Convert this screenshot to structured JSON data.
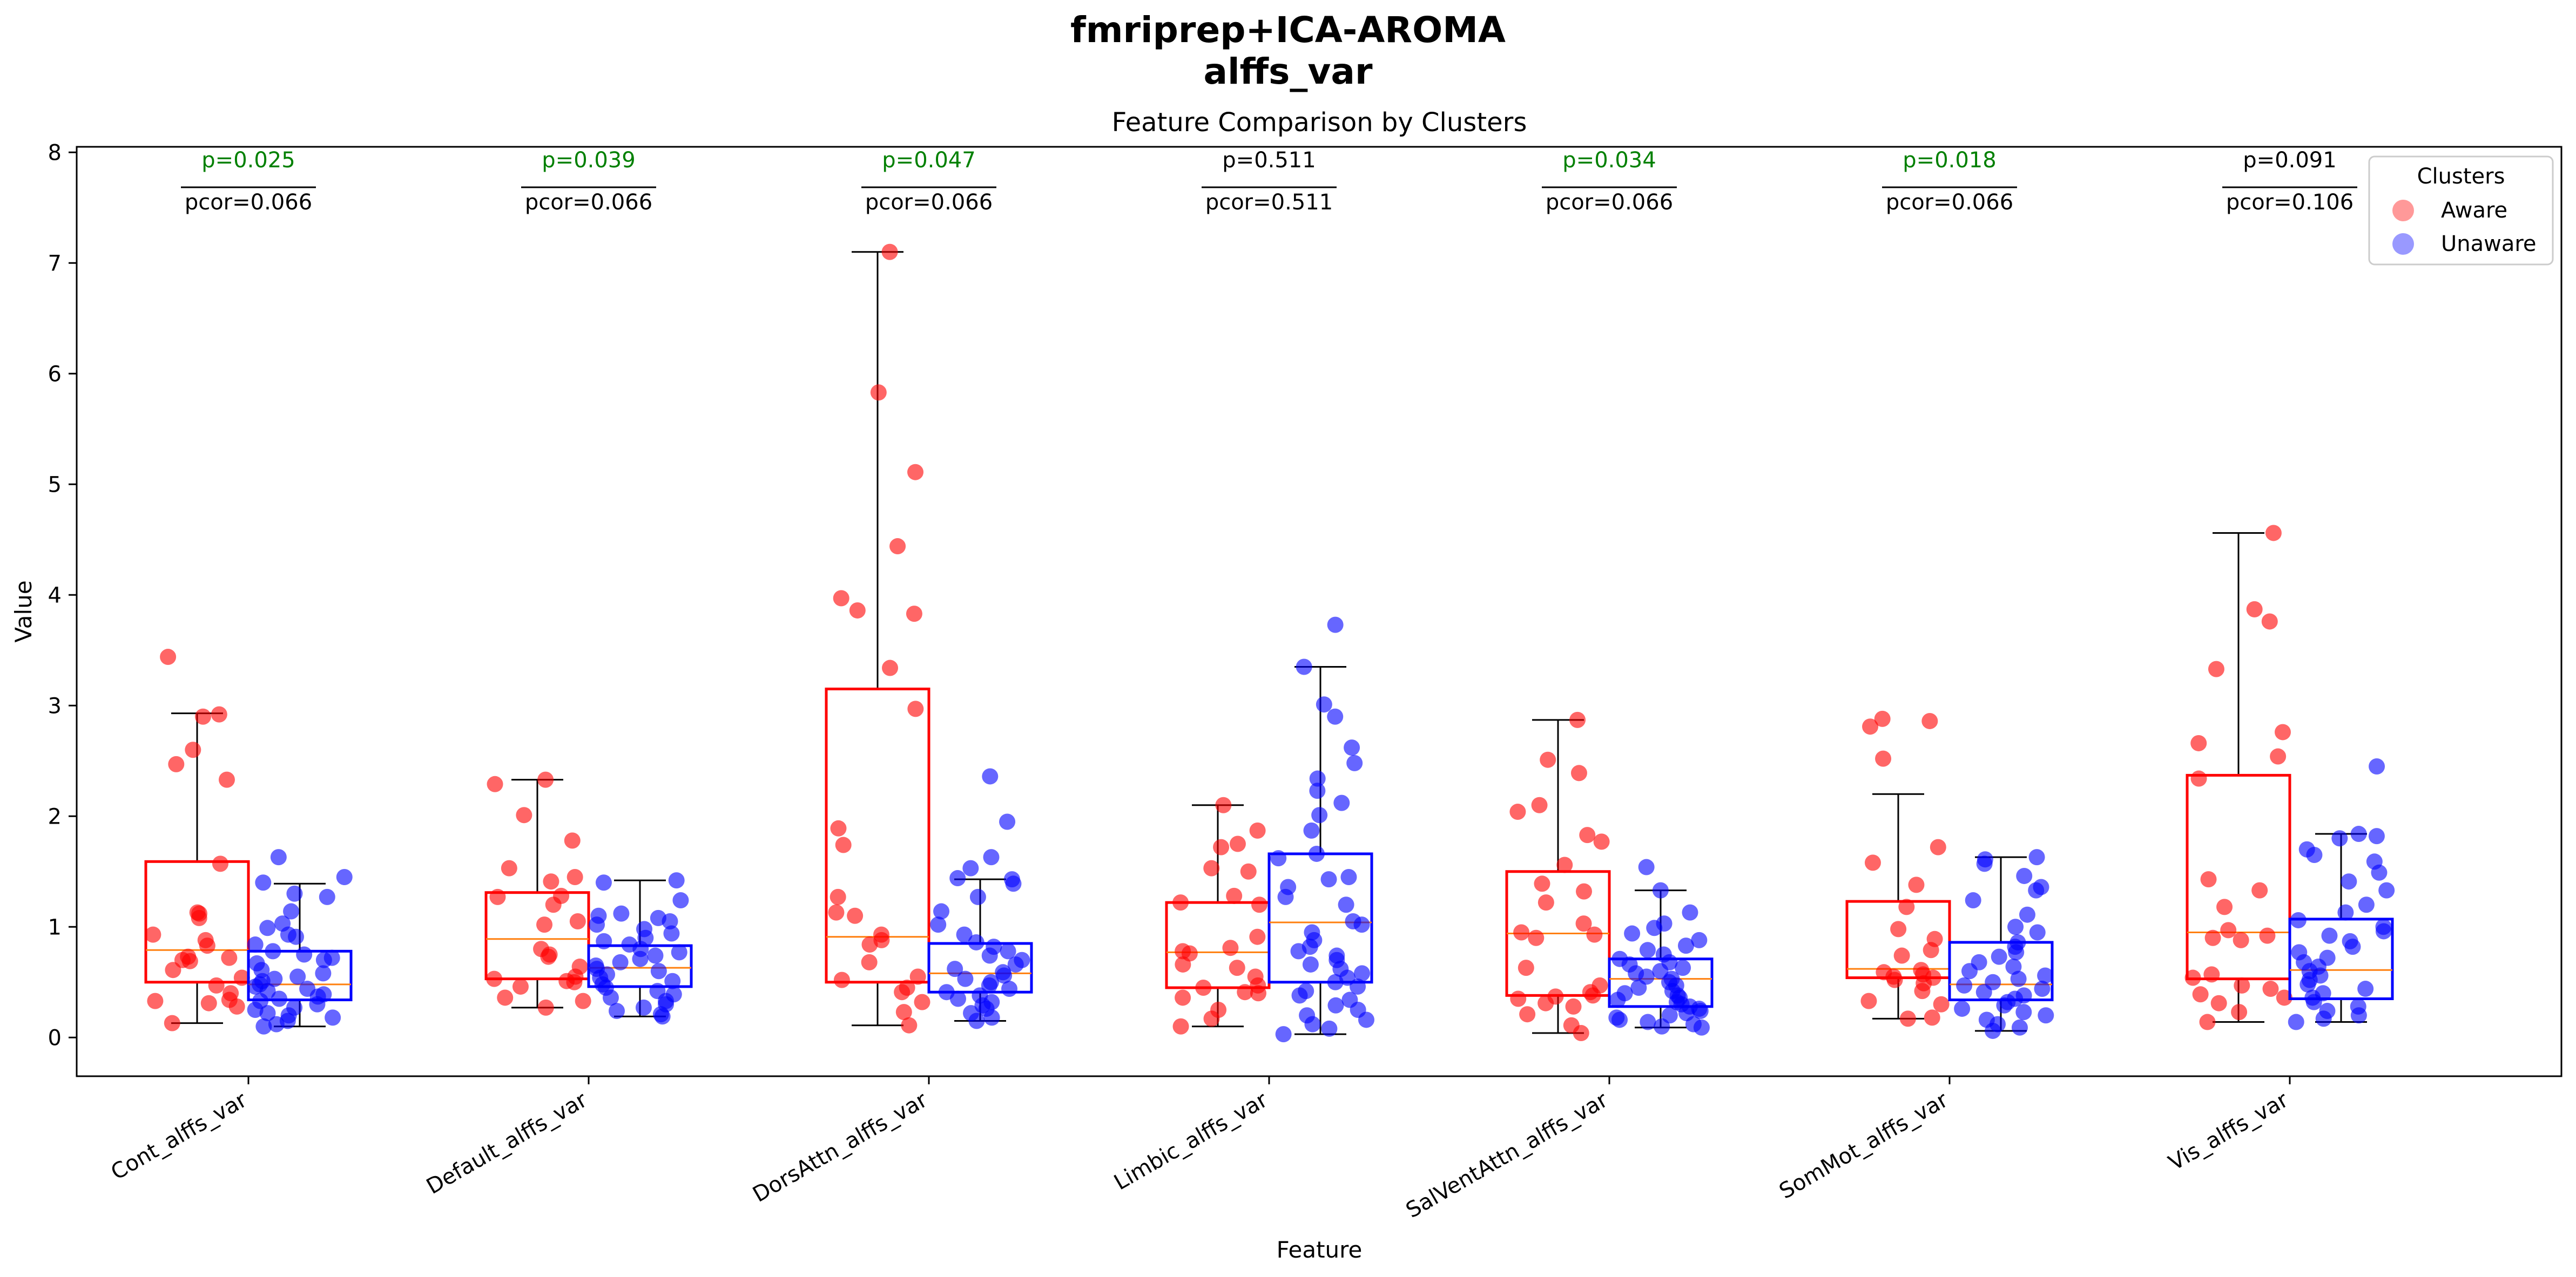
{
  "chart_data": {
    "type": "box",
    "suptitle": [
      "fmriprep+ICA-AROMA",
      "alffs_var"
    ],
    "title": "Feature Comparison by Clusters",
    "xlabel": "Feature",
    "ylabel": "Value",
    "ylim": [
      -0.35,
      8.05
    ],
    "yticks": [
      0,
      1,
      2,
      3,
      4,
      5,
      6,
      7,
      8
    ],
    "categories": [
      "Cont_alffs_var",
      "Default_alffs_var",
      "DorsAttn_alffs_var",
      "Limbic_alffs_var",
      "SalVentAttn_alffs_var",
      "SomMot_alffs_var",
      "Vis_alffs_var"
    ],
    "legend": {
      "title": "Clusters",
      "placement": "top-right"
    },
    "colors": {
      "aware": "#ff0000",
      "unaware": "#0000ff",
      "median": "#ff7f0e",
      "significant": "#008000",
      "nonsignificant": "#000000"
    },
    "series": [
      {
        "name": "Aware",
        "boxes": [
          {
            "whislo": 0.13,
            "q1": 0.5,
            "med": 0.79,
            "q3": 1.59,
            "whishi": 2.93,
            "points": [
              3.44,
              2.92,
              2.9,
              2.6,
              2.47,
              2.33,
              1.57,
              1.13,
              1.12,
              1.08,
              0.93,
              0.88,
              0.83,
              0.73,
              0.72,
              0.7,
              0.69,
              0.61,
              0.54,
              0.47,
              0.4,
              0.34,
              0.33,
              0.31,
              0.28,
              0.13
            ]
          },
          {
            "whislo": 0.27,
            "q1": 0.53,
            "med": 0.89,
            "q3": 1.31,
            "whishi": 2.33,
            "points": [
              2.33,
              2.29,
              2.01,
              1.78,
              1.53,
              1.45,
              1.41,
              1.28,
              1.27,
              1.2,
              1.05,
              1.02,
              0.8,
              0.75,
              0.73,
              0.64,
              0.55,
              0.53,
              0.51,
              0.5,
              0.46,
              0.36,
              0.33,
              0.27
            ]
          },
          {
            "whislo": 0.11,
            "q1": 0.5,
            "med": 0.91,
            "q3": 3.15,
            "whishi": 7.1,
            "points": [
              7.1,
              5.83,
              5.11,
              4.44,
              3.97,
              3.86,
              3.83,
              3.34,
              2.97,
              1.89,
              1.74,
              1.27,
              1.13,
              1.1,
              0.93,
              0.88,
              0.84,
              0.68,
              0.55,
              0.52,
              0.45,
              0.41,
              0.32,
              0.23,
              0.11
            ]
          },
          {
            "whislo": 0.1,
            "q1": 0.45,
            "med": 0.77,
            "q3": 1.22,
            "whishi": 2.1,
            "points": [
              2.1,
              1.87,
              1.75,
              1.72,
              1.53,
              1.5,
              1.28,
              1.22,
              1.2,
              0.91,
              0.81,
              0.78,
              0.76,
              0.66,
              0.63,
              0.55,
              0.47,
              0.45,
              0.41,
              0.4,
              0.36,
              0.25,
              0.17,
              0.1
            ]
          },
          {
            "whislo": 0.04,
            "q1": 0.38,
            "med": 0.94,
            "q3": 1.5,
            "whishi": 2.87,
            "points": [
              2.87,
              2.51,
              2.39,
              2.1,
              2.04,
              1.83,
              1.77,
              1.56,
              1.39,
              1.32,
              1.22,
              1.03,
              0.95,
              0.93,
              0.9,
              0.63,
              0.47,
              0.41,
              0.38,
              0.37,
              0.35,
              0.31,
              0.28,
              0.21,
              0.11,
              0.04
            ]
          },
          {
            "whislo": 0.17,
            "q1": 0.54,
            "med": 0.62,
            "q3": 1.23,
            "whishi": 2.2,
            "points": [
              2.88,
              2.86,
              2.81,
              2.52,
              1.72,
              1.58,
              1.38,
              1.18,
              0.98,
              0.89,
              0.79,
              0.74,
              0.61,
              0.59,
              0.57,
              0.55,
              0.54,
              0.52,
              0.49,
              0.42,
              0.33,
              0.3,
              0.18,
              0.17
            ]
          },
          {
            "whislo": 0.14,
            "q1": 0.53,
            "med": 0.95,
            "q3": 2.37,
            "whishi": 4.56,
            "points": [
              4.56,
              3.87,
              3.76,
              3.33,
              2.76,
              2.66,
              2.54,
              2.34,
              1.43,
              1.33,
              1.18,
              0.97,
              0.92,
              0.9,
              0.88,
              0.57,
              0.54,
              0.47,
              0.44,
              0.39,
              0.36,
              0.31,
              0.23,
              0.14
            ]
          }
        ]
      },
      {
        "name": "Unaware",
        "boxes": [
          {
            "whislo": 0.1,
            "q1": 0.34,
            "med": 0.48,
            "q3": 0.78,
            "whishi": 1.39,
            "points": [
              1.63,
              1.45,
              1.4,
              1.3,
              1.27,
              1.14,
              1.03,
              0.99,
              0.93,
              0.91,
              0.84,
              0.78,
              0.75,
              0.72,
              0.7,
              0.67,
              0.61,
              0.58,
              0.55,
              0.53,
              0.51,
              0.48,
              0.46,
              0.44,
              0.42,
              0.39,
              0.37,
              0.35,
              0.33,
              0.3,
              0.27,
              0.25,
              0.22,
              0.2,
              0.18,
              0.15,
              0.12,
              0.1
            ]
          },
          {
            "whislo": 0.19,
            "q1": 0.46,
            "med": 0.63,
            "q3": 0.83,
            "whishi": 1.42,
            "points": [
              1.42,
              1.4,
              1.24,
              1.12,
              1.1,
              1.08,
              1.05,
              1.02,
              0.98,
              0.94,
              0.9,
              0.87,
              0.84,
              0.8,
              0.77,
              0.74,
              0.71,
              0.68,
              0.65,
              0.62,
              0.6,
              0.57,
              0.54,
              0.51,
              0.48,
              0.45,
              0.42,
              0.39,
              0.36,
              0.33,
              0.3,
              0.27,
              0.24,
              0.21,
              0.19
            ]
          },
          {
            "whislo": 0.15,
            "q1": 0.41,
            "med": 0.58,
            "q3": 0.85,
            "whishi": 1.43,
            "points": [
              2.36,
              1.95,
              1.63,
              1.53,
              1.44,
              1.43,
              1.39,
              1.27,
              1.14,
              1.02,
              0.93,
              0.86,
              0.82,
              0.78,
              0.74,
              0.7,
              0.66,
              0.62,
              0.59,
              0.56,
              0.53,
              0.5,
              0.47,
              0.44,
              0.41,
              0.38,
              0.35,
              0.32,
              0.29,
              0.26,
              0.22,
              0.18,
              0.15
            ]
          },
          {
            "whislo": 0.03,
            "q1": 0.5,
            "med": 1.04,
            "q3": 1.66,
            "whishi": 3.35,
            "points": [
              3.73,
              3.35,
              3.01,
              2.9,
              2.62,
              2.48,
              2.34,
              2.23,
              2.12,
              2.01,
              1.87,
              1.66,
              1.62,
              1.45,
              1.43,
              1.36,
              1.27,
              1.2,
              1.05,
              1.02,
              0.95,
              0.88,
              0.82,
              0.78,
              0.74,
              0.7,
              0.66,
              0.62,
              0.58,
              0.54,
              0.5,
              0.46,
              0.42,
              0.38,
              0.34,
              0.29,
              0.25,
              0.2,
              0.16,
              0.12,
              0.08,
              0.03
            ]
          },
          {
            "whislo": 0.09,
            "q1": 0.28,
            "med": 0.53,
            "q3": 0.71,
            "whishi": 1.33,
            "points": [
              1.54,
              1.33,
              1.13,
              1.03,
              0.99,
              0.94,
              0.88,
              0.83,
              0.79,
              0.75,
              0.71,
              0.68,
              0.66,
              0.63,
              0.6,
              0.58,
              0.55,
              0.53,
              0.5,
              0.47,
              0.45,
              0.42,
              0.4,
              0.38,
              0.36,
              0.34,
              0.32,
              0.3,
              0.28,
              0.26,
              0.24,
              0.22,
              0.2,
              0.18,
              0.16,
              0.14,
              0.12,
              0.1,
              0.09
            ]
          },
          {
            "whislo": 0.06,
            "q1": 0.34,
            "med": 0.48,
            "q3": 0.86,
            "whishi": 1.63,
            "points": [
              1.63,
              1.61,
              1.57,
              1.46,
              1.36,
              1.33,
              1.24,
              1.11,
              1.0,
              0.95,
              0.86,
              0.82,
              0.77,
              0.73,
              0.68,
              0.64,
              0.6,
              0.56,
              0.53,
              0.5,
              0.47,
              0.44,
              0.41,
              0.38,
              0.35,
              0.32,
              0.29,
              0.26,
              0.23,
              0.2,
              0.16,
              0.12,
              0.09,
              0.06
            ]
          },
          {
            "whislo": 0.14,
            "q1": 0.35,
            "med": 0.61,
            "q3": 1.07,
            "whishi": 1.84,
            "points": [
              2.45,
              1.84,
              1.82,
              1.8,
              1.7,
              1.65,
              1.59,
              1.49,
              1.41,
              1.33,
              1.2,
              1.13,
              1.06,
              1.0,
              0.96,
              0.92,
              0.87,
              0.82,
              0.77,
              0.72,
              0.68,
              0.64,
              0.6,
              0.56,
              0.52,
              0.48,
              0.44,
              0.4,
              0.36,
              0.32,
              0.28,
              0.24,
              0.2,
              0.17,
              0.14
            ]
          }
        ]
      }
    ],
    "annotations": [
      {
        "p": "p=0.025",
        "pcor": "pcor=0.066",
        "significant": true
      },
      {
        "p": "p=0.039",
        "pcor": "pcor=0.066",
        "significant": true
      },
      {
        "p": "p=0.047",
        "pcor": "pcor=0.066",
        "significant": true
      },
      {
        "p": "p=0.511",
        "pcor": "pcor=0.511",
        "significant": false
      },
      {
        "p": "p=0.034",
        "pcor": "pcor=0.066",
        "significant": true
      },
      {
        "p": "p=0.018",
        "pcor": "pcor=0.066",
        "significant": true
      },
      {
        "p": "p=0.091",
        "pcor": "pcor=0.106",
        "significant": false
      }
    ]
  }
}
